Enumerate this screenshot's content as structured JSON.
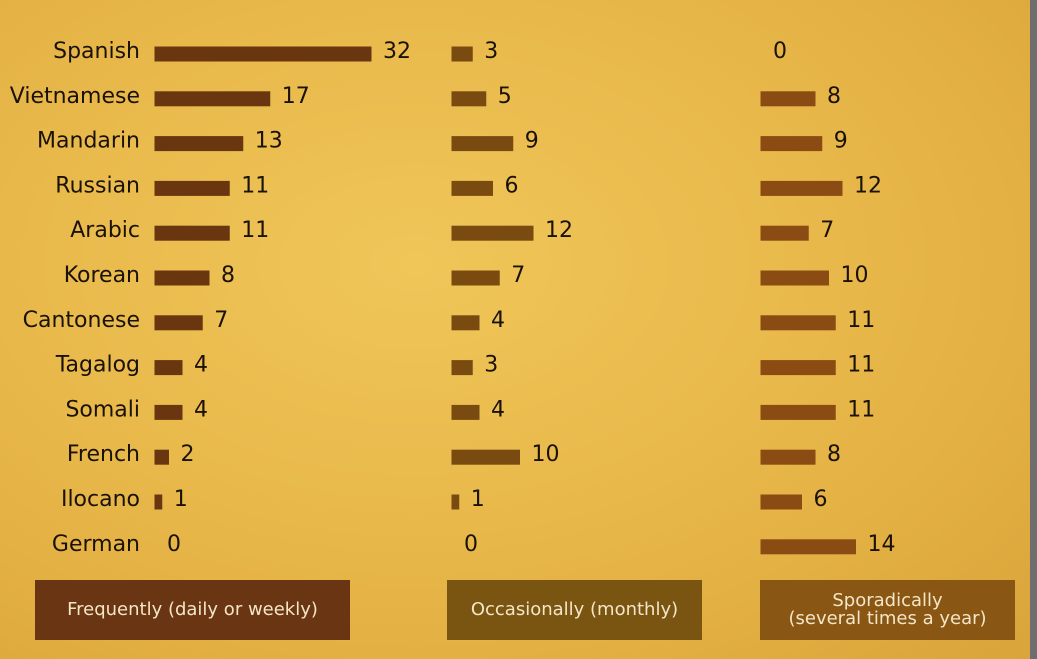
{
  "chart_data": {
    "type": "bar",
    "categories": [
      "Spanish",
      "Vietnamese",
      "Mandarin",
      "Russian",
      "Arabic",
      "Korean",
      "Cantonese",
      "Tagalog",
      "Somali",
      "French",
      "Ilocano",
      "German"
    ],
    "series": [
      {
        "name": "Frequently (daily or weekly)",
        "color": "#6a3610",
        "values": [
          32,
          17,
          13,
          11,
          11,
          8,
          7,
          4,
          4,
          2,
          1,
          0
        ]
      },
      {
        "name": "Occasionally (monthly)",
        "color": "#7a4b10",
        "values": [
          3,
          5,
          9,
          6,
          12,
          7,
          4,
          3,
          4,
          10,
          1,
          0
        ]
      },
      {
        "name": "Sporadically\n(several times a year)",
        "color": "#8a4c12",
        "values": [
          0,
          8,
          9,
          12,
          7,
          10,
          11,
          11,
          11,
          8,
          6,
          14
        ]
      }
    ]
  }
}
